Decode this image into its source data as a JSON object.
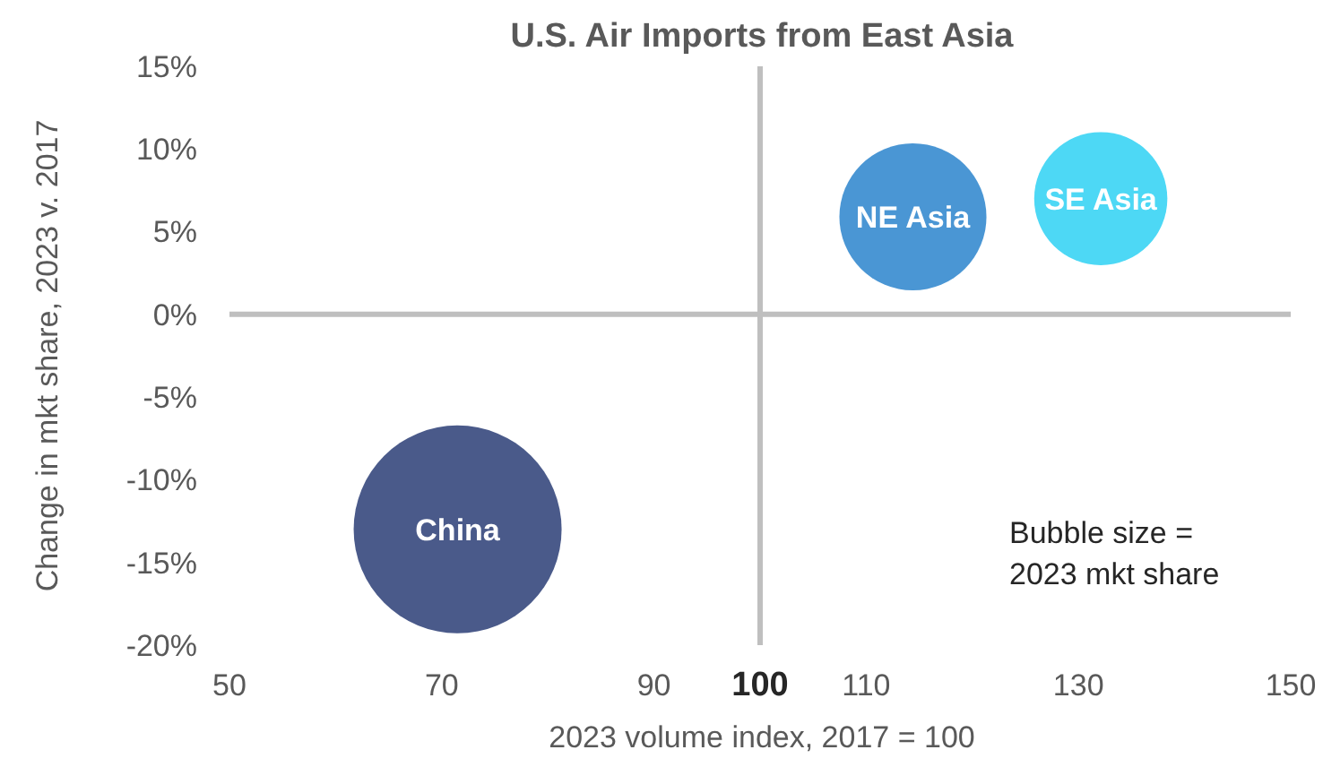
{
  "chart_data": {
    "type": "bubble",
    "title": "U.S. Air Imports from East Asia",
    "xlabel": "2023 volume index, 2017 = 100",
    "ylabel": "Change in mkt share, 2023 v. 2017",
    "xlim": [
      50,
      150
    ],
    "xticks": [
      50,
      70,
      90,
      110,
      130,
      150
    ],
    "ylim": [
      -20,
      15
    ],
    "yticks": [
      {
        "value": -20,
        "label": "-20%"
      },
      {
        "value": -15,
        "label": "-15%"
      },
      {
        "value": -10,
        "label": "-10%"
      },
      {
        "value": -5,
        "label": "-5%"
      },
      {
        "value": 0,
        "label": "0%"
      },
      {
        "value": 5,
        "label": "5%"
      },
      {
        "value": 10,
        "label": "10%"
      },
      {
        "value": 15,
        "label": "15%"
      }
    ],
    "grid": false,
    "legend": false,
    "ref_lines": [
      {
        "axis": "x",
        "value": 100,
        "label": "100",
        "color": "#bfbfbf"
      },
      {
        "axis": "y",
        "value": 0,
        "color": "#bfbfbf"
      }
    ],
    "series": [
      {
        "name": "China",
        "color": "#4a5a8a",
        "x": [
          71.5
        ],
        "values": [
          -13
        ],
        "sizes": [
          1
        ]
      },
      {
        "name": "NE Asia",
        "color": "#4a96d4",
        "x": [
          114.4
        ],
        "values": [
          5.9
        ],
        "sizes": [
          0.5
        ]
      },
      {
        "name": "SE Asia",
        "color": "#4dd8f5",
        "x": [
          132.1
        ],
        "values": [
          7
        ],
        "sizes": [
          0.41
        ]
      }
    ],
    "annotations": [
      "Bubble size =\n2023 mkt share"
    ]
  }
}
